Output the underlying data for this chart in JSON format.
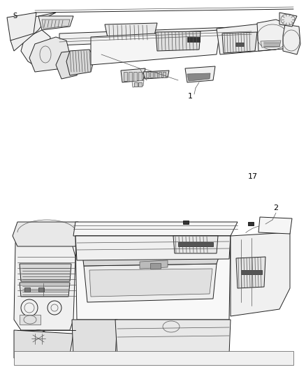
{
  "background_color": "#ffffff",
  "line_color": "#555555",
  "dark_line": "#222222",
  "label_color": "#000000",
  "fig_width": 4.38,
  "fig_height": 5.33,
  "dpi": 100,
  "label1": "1",
  "label2": "2",
  "label17": "17",
  "label_s": "S"
}
